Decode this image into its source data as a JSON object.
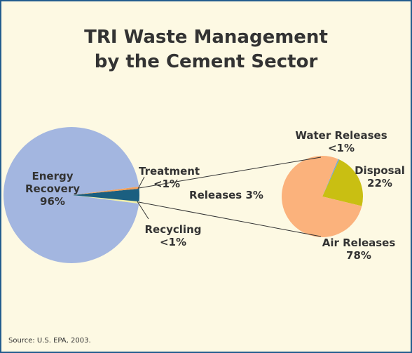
{
  "chart_data": [
    {
      "type": "pie",
      "title": "TRI Waste Management",
      "subtitle": "by the Cement Sector",
      "categories": [
        "Energy Recovery",
        "Treatment",
        "Releases",
        "Recycling"
      ],
      "values": [
        96,
        0.5,
        3,
        0.5
      ],
      "value_labels": [
        "96%",
        "<1%",
        "3%",
        "<1%"
      ],
      "colors": [
        "#a3b6e0",
        "#f5a05a",
        "#1b5f80",
        "#f2f0a8"
      ],
      "source": "Source: U.S. EPA, 2003."
    },
    {
      "type": "pie",
      "categories": [
        "Air Releases",
        "Water Releases",
        "Disposal"
      ],
      "values": [
        78,
        0.5,
        22
      ],
      "value_labels": [
        "78%",
        "<1%",
        "22%"
      ],
      "colors": [
        "#fbb27c",
        "#6ea6d6",
        "#c9bf12"
      ]
    }
  ]
}
